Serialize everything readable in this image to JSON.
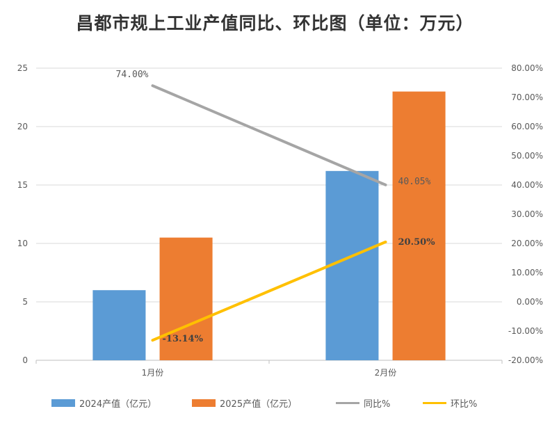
{
  "chart_data": {
    "type": "bar+line",
    "title": "昌都市规上工业产值同比、环比图（单位：万元）",
    "categories": [
      "1月份",
      "2月份"
    ],
    "left_axis": {
      "ylim": [
        0,
        25
      ],
      "ticks": [
        "0",
        "5",
        "10",
        "15",
        "20",
        "25"
      ]
    },
    "right_axis": {
      "ylim": [
        -20,
        80
      ],
      "ticks": [
        "-20.00%",
        "-10.00%",
        "0.00%",
        "10.00%",
        "20.00%",
        "30.00%",
        "40.00%",
        "50.00%",
        "60.00%",
        "70.00%",
        "80.00%"
      ]
    },
    "grid": true,
    "legend_position": "bottom",
    "series": [
      {
        "name": "2024产值（亿元）",
        "type": "bar",
        "axis": "left",
        "color": "#5B9BD5",
        "values": [
          6,
          16.2
        ]
      },
      {
        "name": "2025产值（亿元）",
        "type": "bar",
        "axis": "left",
        "color": "#ED7D31",
        "values": [
          10.5,
          23
        ]
      },
      {
        "name": "同比%",
        "type": "line",
        "axis": "right",
        "color": "#A5A5A5",
        "values": [
          74.0,
          40.05
        ],
        "labels": [
          "74.00%",
          "40.05%"
        ]
      },
      {
        "name": "环比%",
        "type": "line",
        "axis": "right",
        "color": "#FFC000",
        "values": [
          -13.14,
          20.5
        ],
        "labels": [
          "-13.14%",
          "20.50%"
        ]
      }
    ]
  }
}
